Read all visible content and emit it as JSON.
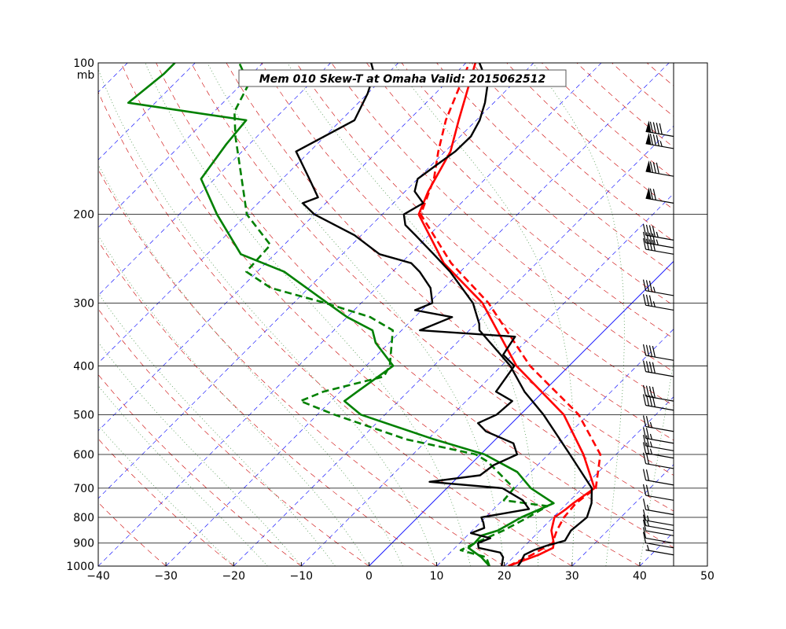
{
  "chart_data": {
    "type": "skew-t",
    "title": "Mem 010  Skew-T at Omaha   Valid: 2015062512",
    "pressure_unit_label": "mb",
    "xlim": [
      -40,
      50
    ],
    "plim": [
      1000,
      100
    ],
    "x_ticks": [
      -40,
      -30,
      -20,
      -10,
      0,
      10,
      20,
      30,
      40,
      50
    ],
    "p_ticks": [
      100,
      200,
      300,
      400,
      500,
      600,
      700,
      800,
      900,
      1000
    ],
    "grid": true,
    "colors": {
      "temperature": "#ff0000",
      "dewpoint": "#008000",
      "ensemble_member": "#000000",
      "isotherm": "#0000ff",
      "dry_adiabat": "#cc0000",
      "moist_adiabat": "#3a8a3a",
      "mixing_ratio": "#8b4513"
    },
    "series": [
      {
        "name": "",
        "kind": "temperature_solid",
        "color": "#ff0000",
        "dash": "solid",
        "points": [
          [
            1000,
            20.6
          ],
          [
            950,
            23.4
          ],
          [
            920,
            24.5
          ],
          [
            900,
            23.9
          ],
          [
            850,
            21.7
          ],
          [
            800,
            20.2
          ],
          [
            770,
            20.7
          ],
          [
            750,
            20.9
          ],
          [
            700,
            21.8
          ],
          [
            600,
            15.2
          ],
          [
            500,
            6.4
          ],
          [
            400,
            -7.8
          ],
          [
            300,
            -22.1
          ],
          [
            250,
            -33.7
          ],
          [
            200,
            -44.6
          ],
          [
            180,
            -46.6
          ],
          [
            150,
            -49.2
          ],
          [
            130,
            -52.6
          ],
          [
            100,
            -58.6
          ]
        ]
      },
      {
        "name": "",
        "kind": "temperature_dashed",
        "color": "#ff0000",
        "dash": "dashed",
        "points": [
          [
            1000,
            20.6
          ],
          [
            950,
            22.4
          ],
          [
            900,
            23.7
          ],
          [
            850,
            22.5
          ],
          [
            800,
            21.6
          ],
          [
            750,
            21.3
          ],
          [
            700,
            22.0
          ],
          [
            600,
            17.7
          ],
          [
            500,
            8.6
          ],
          [
            400,
            -5.8
          ],
          [
            300,
            -21.2
          ],
          [
            250,
            -32.6
          ],
          [
            200,
            -44.3
          ],
          [
            170,
            -47.6
          ],
          [
            150,
            -51.0
          ],
          [
            130,
            -54.5
          ],
          [
            100,
            -59.5
          ]
        ]
      },
      {
        "name": "",
        "kind": "dewpoint_solid",
        "color": "#008000",
        "dash": "solid",
        "points": [
          [
            1000,
            17.8
          ],
          [
            960,
            15.3
          ],
          [
            920,
            12.0
          ],
          [
            900,
            12.2
          ],
          [
            870,
            12.1
          ],
          [
            850,
            13.8
          ],
          [
            800,
            15.3
          ],
          [
            750,
            18.0
          ],
          [
            700,
            12.4
          ],
          [
            650,
            8.0
          ],
          [
            600,
            0.6
          ],
          [
            560,
            -9.1
          ],
          [
            500,
            -23.6
          ],
          [
            470,
            -28.0
          ],
          [
            450,
            -27.5
          ],
          [
            400,
            -26.0
          ],
          [
            360,
            -32.0
          ],
          [
            340,
            -34.3
          ],
          [
            320,
            -40.0
          ],
          [
            300,
            -45.0
          ],
          [
            260,
            -56.0
          ],
          [
            240,
            -65.0
          ],
          [
            200,
            -74.4
          ],
          [
            170,
            -82.0
          ],
          [
            145,
            -83.4
          ],
          [
            130,
            -84.0
          ],
          [
            120,
            -104.0
          ],
          [
            105,
            -103.0
          ],
          [
            100,
            -103.0
          ]
        ]
      },
      {
        "name": "",
        "kind": "dewpoint_dashed",
        "color": "#008000",
        "dash": "dashed",
        "points": [
          [
            1000,
            17.8
          ],
          [
            960,
            16.0
          ],
          [
            930,
            11.2
          ],
          [
            900,
            12.3
          ],
          [
            850,
            14.6
          ],
          [
            800,
            16.3
          ],
          [
            760,
            17.5
          ],
          [
            740,
            10.2
          ],
          [
            700,
            9.9
          ],
          [
            620,
            2.1
          ],
          [
            600,
            -0.7
          ],
          [
            560,
            -13.2
          ],
          [
            500,
            -27.5
          ],
          [
            470,
            -34.5
          ],
          [
            450,
            -32.5
          ],
          [
            420,
            -25.8
          ],
          [
            400,
            -26.5
          ],
          [
            340,
            -31.3
          ],
          [
            320,
            -36.6
          ],
          [
            300,
            -45.3
          ],
          [
            280,
            -55.6
          ],
          [
            260,
            -61.6
          ],
          [
            230,
            -62.0
          ],
          [
            200,
            -70.0
          ],
          [
            170,
            -76.0
          ],
          [
            140,
            -83.2
          ],
          [
            125,
            -87.0
          ],
          [
            110,
            -89.0
          ],
          [
            100,
            -93.5
          ]
        ]
      },
      {
        "name": "",
        "kind": "ensemble_temperature",
        "color": "#000000",
        "dash": "solid",
        "points": [
          [
            1000,
            22.0
          ],
          [
            980,
            21.8
          ],
          [
            950,
            21.3
          ],
          [
            930,
            22.0
          ],
          [
            910,
            23.3
          ],
          [
            890,
            25.2
          ],
          [
            850,
            24.6
          ],
          [
            800,
            25.0
          ],
          [
            750,
            23.6
          ],
          [
            700,
            21.4
          ],
          [
            600,
            13.2
          ],
          [
            500,
            3.4
          ],
          [
            450,
            -2.8
          ],
          [
            400,
            -8.7
          ],
          [
            340,
            -18.5
          ],
          [
            330,
            -19.5
          ],
          [
            300,
            -23.5
          ],
          [
            260,
            -31.5
          ],
          [
            240,
            -36.5
          ],
          [
            220,
            -42.0
          ],
          [
            210,
            -45.0
          ],
          [
            200,
            -46.8
          ],
          [
            190,
            -45.6
          ],
          [
            180,
            -48.6
          ],
          [
            170,
            -50.0
          ],
          [
            160,
            -49.3
          ],
          [
            150,
            -48.5
          ],
          [
            140,
            -48.4
          ],
          [
            130,
            -49.5
          ],
          [
            120,
            -51.3
          ],
          [
            110,
            -53.7
          ],
          [
            100,
            -58.0
          ]
        ]
      },
      {
        "name": "",
        "kind": "ensemble_dewpoint",
        "color": "#000000",
        "dash": "solid",
        "points": [
          [
            1000,
            19.6
          ],
          [
            960,
            18.5
          ],
          [
            940,
            17.4
          ],
          [
            920,
            13.5
          ],
          [
            900,
            12.7
          ],
          [
            880,
            13.8
          ],
          [
            860,
            10.2
          ],
          [
            840,
            11.4
          ],
          [
            820,
            10.5
          ],
          [
            800,
            9.4
          ],
          [
            770,
            15.2
          ],
          [
            740,
            13.0
          ],
          [
            700,
            8.2
          ],
          [
            680,
            -3.5
          ],
          [
            660,
            3.0
          ],
          [
            630,
            3.5
          ],
          [
            600,
            5.4
          ],
          [
            570,
            3.2
          ],
          [
            540,
            -2.6
          ],
          [
            520,
            -5.0
          ],
          [
            500,
            -3.5
          ],
          [
            470,
            -3.2
          ],
          [
            450,
            -7.0
          ],
          [
            400,
            -8.1
          ],
          [
            380,
            -11.4
          ],
          [
            350,
            -12.3
          ],
          [
            340,
            -27.3
          ],
          [
            320,
            -24.5
          ],
          [
            310,
            -31.0
          ],
          [
            300,
            -29.5
          ],
          [
            280,
            -32.0
          ],
          [
            260,
            -36.0
          ],
          [
            250,
            -38.5
          ],
          [
            240,
            -44.5
          ],
          [
            220,
            -51.0
          ],
          [
            200,
            -60.0
          ],
          [
            190,
            -63.4
          ],
          [
            185,
            -62.0
          ],
          [
            170,
            -66.0
          ],
          [
            150,
            -72.0
          ],
          [
            130,
            -68.0
          ],
          [
            115,
            -70.0
          ],
          [
            105,
            -72.0
          ],
          [
            100,
            -74.0
          ]
        ]
      }
    ],
    "wind_barbs": [
      {
        "p": 140,
        "speed_kt": 90
      },
      {
        "p": 148,
        "speed_kt": 85
      },
      {
        "p": 168,
        "speed_kt": 80
      },
      {
        "p": 190,
        "speed_kt": 70
      },
      {
        "p": 225,
        "speed_kt": 45
      },
      {
        "p": 233,
        "speed_kt": 45
      },
      {
        "p": 240,
        "speed_kt": 40
      },
      {
        "p": 290,
        "speed_kt": 35
      },
      {
        "p": 310,
        "speed_kt": 35
      },
      {
        "p": 390,
        "speed_kt": 40
      },
      {
        "p": 420,
        "speed_kt": 40
      },
      {
        "p": 470,
        "speed_kt": 40
      },
      {
        "p": 490,
        "speed_kt": 40
      },
      {
        "p": 540,
        "speed_kt": 25
      },
      {
        "p": 570,
        "speed_kt": 25
      },
      {
        "p": 590,
        "speed_kt": 25
      },
      {
        "p": 610,
        "speed_kt": 25
      },
      {
        "p": 640,
        "speed_kt": 20
      },
      {
        "p": 690,
        "speed_kt": 20
      },
      {
        "p": 740,
        "speed_kt": 20
      },
      {
        "p": 790,
        "speed_kt": 15
      },
      {
        "p": 830,
        "speed_kt": 15
      },
      {
        "p": 850,
        "speed_kt": 15
      },
      {
        "p": 870,
        "speed_kt": 10
      },
      {
        "p": 900,
        "speed_kt": 10
      },
      {
        "p": 920,
        "speed_kt": 10
      },
      {
        "p": 950,
        "speed_kt": 5
      }
    ]
  }
}
